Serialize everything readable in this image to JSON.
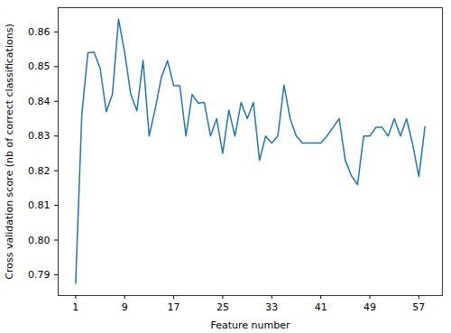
{
  "chart_data": {
    "type": "line",
    "xlabel": "Feature number",
    "ylabel": "Cross validation score (nb of correct classifications)",
    "color": "#1f77b4",
    "x": [
      1,
      2,
      3,
      4,
      5,
      6,
      7,
      8,
      9,
      10,
      11,
      12,
      13,
      14,
      15,
      16,
      17,
      18,
      19,
      20,
      21,
      22,
      23,
      24,
      25,
      26,
      27,
      28,
      29,
      30,
      31,
      32,
      33,
      34,
      35,
      36,
      37,
      38,
      39,
      40,
      41,
      42,
      43,
      44,
      45,
      46,
      47,
      48,
      49,
      50,
      51,
      52,
      53,
      54,
      55,
      56,
      57,
      58
    ],
    "values": [
      0.7875,
      0.836,
      0.854,
      0.8542,
      0.8495,
      0.837,
      0.842,
      0.8637,
      0.854,
      0.842,
      0.8373,
      0.8518,
      0.83,
      0.838,
      0.847,
      0.8517,
      0.8445,
      0.8445,
      0.83,
      0.842,
      0.8395,
      0.8397,
      0.83,
      0.835,
      0.825,
      0.8375,
      0.83,
      0.8397,
      0.835,
      0.8397,
      0.823,
      0.83,
      0.828,
      0.83,
      0.8447,
      0.835,
      0.83,
      0.828,
      0.828,
      0.828,
      0.828,
      0.83,
      0.8325,
      0.835,
      0.823,
      0.8185,
      0.816,
      0.83,
      0.83,
      0.8325,
      0.8325,
      0.83,
      0.835,
      0.83,
      0.835,
      0.8275,
      0.8183,
      0.8327
    ],
    "xlim": [
      -1.85,
      60.85
    ],
    "xticks": [
      1,
      9,
      17,
      25,
      33,
      41,
      49,
      57
    ],
    "ylim": [
      0.784,
      0.867
    ],
    "yticks": [
      0.79,
      {
        "value": 0.8,
        "label": "0.80"
      },
      0.81,
      0.82,
      0.83,
      0.84,
      0.85,
      0.86
    ],
    "grid": false
  }
}
